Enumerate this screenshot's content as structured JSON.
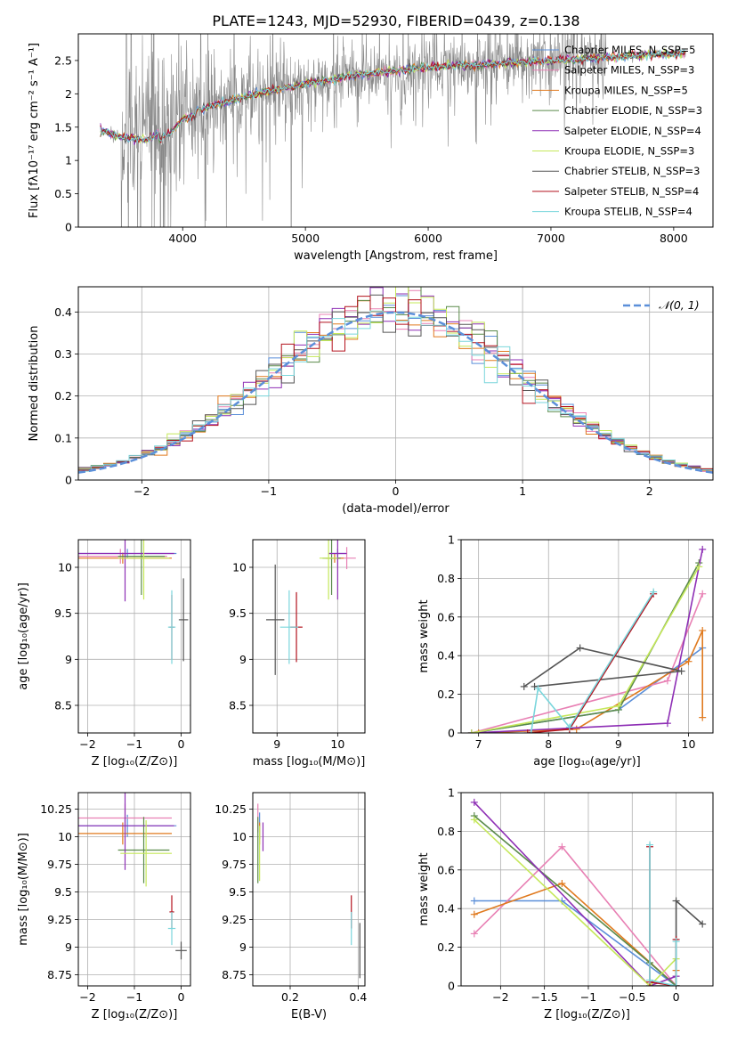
{
  "figure_title": "PLATE=1243, MJD=52930, FIBERID=0439, z=0.138",
  "colors": {
    "chabrier_miles": "#5b8fd9",
    "salpeter_miles": "#e880b4",
    "kroupa_miles": "#e07a1f",
    "chabrier_elodie": "#5a8a4a",
    "salpeter_elodie": "#8e2fb5",
    "kroupa_elodie": "#c5e85a",
    "chabrier_stelib": "#555555",
    "salpeter_stelib": "#b3121d",
    "kroupa_stelib": "#7ad6dc",
    "gauss": "#5b8fd9",
    "data": "#888888"
  },
  "chart_data": [
    {
      "id": "spectrum",
      "type": "line",
      "xlabel": "wavelength [Angstrom, rest frame]",
      "ylabel": "Flux [fλ10⁻¹⁷ erg cm⁻² s⁻¹ A⁻¹]",
      "xlim": [
        3150,
        8320
      ],
      "ylim": [
        0,
        2.9
      ],
      "xticks": [
        4000,
        5000,
        6000,
        7000,
        8000
      ],
      "yticks": [
        0.0,
        0.5,
        1.0,
        1.5,
        2.0,
        2.5
      ],
      "legend_position": "top-right",
      "continuum": {
        "x": [
          3350,
          3500,
          3700,
          3900,
          4000,
          4300,
          4600,
          5000,
          5500,
          6000,
          6500,
          7000,
          7500,
          8000,
          8100
        ],
        "y": [
          1.45,
          1.35,
          1.3,
          1.5,
          1.7,
          1.85,
          2.0,
          2.15,
          2.3,
          2.4,
          2.45,
          2.5,
          2.55,
          2.6,
          2.62
        ]
      },
      "data_noise_range": [
        3500,
        7450
      ],
      "series": [
        {
          "name": "Chabrier MILES, N_SSP=5",
          "color": "chabrier_miles"
        },
        {
          "name": "Salpeter MILES, N_SSP=3",
          "color": "salpeter_miles"
        },
        {
          "name": "Kroupa MILES, N_SSP=5",
          "color": "kroupa_miles"
        },
        {
          "name": "Chabrier ELODIE, N_SSP=3",
          "color": "chabrier_elodie"
        },
        {
          "name": "Salpeter ELODIE, N_SSP=4",
          "color": "salpeter_elodie"
        },
        {
          "name": "Kroupa ELODIE, N_SSP=3",
          "color": "kroupa_elodie"
        },
        {
          "name": "Chabrier STELIB, N_SSP=3",
          "color": "chabrier_stelib"
        },
        {
          "name": "Salpeter STELIB, N_SSP=4",
          "color": "salpeter_stelib"
        },
        {
          "name": "Kroupa STELIB, N_SSP=4",
          "color": "kroupa_stelib"
        }
      ]
    },
    {
      "id": "residuals",
      "type": "bar",
      "xlabel": "(data-model)/error",
      "ylabel": "Normed distribution",
      "xlim": [
        -2.5,
        2.5
      ],
      "ylim": [
        0,
        0.46
      ],
      "xticks": [
        -2,
        -1,
        0,
        1,
        2
      ],
      "yticks": [
        0.0,
        0.1,
        0.2,
        0.3,
        0.4
      ],
      "grid": true,
      "legend_position": "top-right",
      "gauss_label": "𝒩(0, 1)",
      "bin_width": 0.1
    },
    {
      "id": "age_vs_Z",
      "type": "scatter",
      "xlabel": "Z [log₁₀(Z/Z⊙)]",
      "ylabel": "age  [log₁₀(age/yr)]",
      "xlim": [
        -2.2,
        0.2
      ],
      "ylim": [
        8.2,
        10.3
      ],
      "xticks": [
        -2,
        -1,
        0
      ],
      "yticks": [
        8.5,
        9.0,
        9.5,
        10.0
      ],
      "grid": true,
      "points": [
        {
          "series": "chabrier_miles",
          "x": -1.15,
          "xerr": 1.05,
          "y": 10.15,
          "yerr": 0.05
        },
        {
          "series": "salpeter_miles",
          "x": -1.3,
          "xerr": 1.0,
          "y": 10.12,
          "yerr": 0.08
        },
        {
          "series": "kroupa_miles",
          "x": -1.25,
          "xerr": 1.05,
          "y": 10.1,
          "yerr": 0.06
        },
        {
          "series": "chabrier_elodie",
          "x": -0.85,
          "xerr": 0.5,
          "y": 10.12,
          "yerr": 0.42
        },
        {
          "series": "salpeter_elodie",
          "x": -1.2,
          "xerr": 1.05,
          "y": 10.15,
          "yerr": 0.52
        },
        {
          "series": "kroupa_elodie",
          "x": -0.8,
          "xerr": 0.55,
          "y": 10.1,
          "yerr": 0.45
        },
        {
          "series": "chabrier_stelib",
          "x": 0.05,
          "xerr": 0.1,
          "y": 9.43,
          "yerr": 0.45
        },
        {
          "series": "salpeter_stelib",
          "x": -0.2,
          "xerr": 0.05,
          "y": 9.35,
          "yerr": 0.35
        },
        {
          "series": "kroupa_stelib",
          "x": -0.2,
          "xerr": 0.08,
          "y": 9.35,
          "yerr": 0.4
        }
      ]
    },
    {
      "id": "age_vs_mass",
      "type": "scatter",
      "xlabel": "mass [log₁₀(M/M⊙)]",
      "ylabel": "",
      "xlim": [
        8.6,
        10.45
      ],
      "ylim": [
        8.2,
        10.3
      ],
      "xticks": [
        9,
        10
      ],
      "yticks": [
        8.5,
        9.0,
        9.5,
        10.0
      ],
      "grid": true,
      "points": [
        {
          "series": "chabrier_miles",
          "x": 10.0,
          "xerr": 0.15,
          "y": 10.15,
          "yerr": 0.05
        },
        {
          "series": "salpeter_miles",
          "x": 10.15,
          "xerr": 0.15,
          "y": 10.1,
          "yerr": 0.12
        },
        {
          "series": "kroupa_miles",
          "x": 9.95,
          "xerr": 0.15,
          "y": 10.1,
          "yerr": 0.05
        },
        {
          "series": "chabrier_elodie",
          "x": 9.9,
          "xerr": 0.15,
          "y": 10.1,
          "yerr": 0.4
        },
        {
          "series": "salpeter_elodie",
          "x": 10.0,
          "xerr": 0.15,
          "y": 10.15,
          "yerr": 0.5
        },
        {
          "series": "kroupa_elodie",
          "x": 9.85,
          "xerr": 0.15,
          "y": 10.1,
          "yerr": 0.45
        },
        {
          "series": "chabrier_stelib",
          "x": 8.97,
          "xerr": 0.15,
          "y": 9.43,
          "yerr": 0.6
        },
        {
          "series": "salpeter_stelib",
          "x": 9.32,
          "xerr": 0.1,
          "y": 9.35,
          "yerr": 0.38
        },
        {
          "series": "kroupa_stelib",
          "x": 9.2,
          "xerr": 0.15,
          "y": 9.35,
          "yerr": 0.4
        }
      ]
    },
    {
      "id": "weight_vs_age",
      "type": "line",
      "xlabel": "age  [log₁₀(age/yr)]",
      "ylabel": "mass weight",
      "xlim": [
        6.75,
        10.35
      ],
      "ylim": [
        0,
        1.0
      ],
      "xticks": [
        7,
        8,
        9,
        10
      ],
      "yticks": [
        0.0,
        0.2,
        0.4,
        0.6,
        0.8,
        1.0
      ],
      "grid": true,
      "series": [
        {
          "color": "chabrier_miles",
          "x": [
            6.9,
            9.0,
            10.2
          ],
          "y": [
            0.0,
            0.12,
            0.44
          ]
        },
        {
          "color": "salpeter_miles",
          "x": [
            6.9,
            9.7,
            10.2
          ],
          "y": [
            0.0,
            0.27,
            0.72
          ]
        },
        {
          "color": "kroupa_miles",
          "x": [
            7.0,
            8.4,
            10.0,
            10.2,
            10.2
          ],
          "y": [
            0.0,
            0.02,
            0.37,
            0.53,
            0.08
          ]
        },
        {
          "color": "chabrier_elodie",
          "x": [
            6.9,
            9.0,
            10.15
          ],
          "y": [
            0.0,
            0.12,
            0.88
          ]
        },
        {
          "color": "salpeter_elodie",
          "x": [
            6.9,
            9.7,
            10.2
          ],
          "y": [
            0.0,
            0.05,
            0.95
          ]
        },
        {
          "color": "kroupa_elodie",
          "x": [
            6.9,
            9.0,
            10.15
          ],
          "y": [
            0.0,
            0.14,
            0.86
          ]
        },
        {
          "color": "chabrier_stelib",
          "x": [
            7.65,
            8.45,
            9.9,
            7.8
          ],
          "y": [
            0.24,
            0.44,
            0.32,
            0.24
          ]
        },
        {
          "color": "salpeter_stelib",
          "x": [
            7.7,
            8.3,
            9.5
          ],
          "y": [
            0.0,
            0.02,
            0.72
          ]
        },
        {
          "color": "kroupa_stelib",
          "x": [
            7.75,
            7.85,
            8.3,
            9.5
          ],
          "y": [
            0.0,
            0.23,
            0.03,
            0.73
          ]
        }
      ]
    },
    {
      "id": "mass_vs_Z",
      "type": "scatter",
      "xlabel": "Z [log₁₀(Z/Z⊙)]",
      "ylabel": "mass [log₁₀(M/M⊙)]",
      "xlim": [
        -2.2,
        0.2
      ],
      "ylim": [
        8.65,
        10.4
      ],
      "xticks": [
        -2,
        -1,
        0
      ],
      "yticks": [
        8.75,
        9.0,
        9.25,
        9.5,
        9.75,
        10.0,
        10.25
      ],
      "grid": true,
      "points": [
        {
          "series": "chabrier_miles",
          "x": -1.15,
          "xerr": 1.05,
          "y": 10.1,
          "yerr": 0.1
        },
        {
          "series": "salpeter_miles",
          "x": -1.2,
          "xerr": 1.0,
          "y": 10.17,
          "yerr": 0.13
        },
        {
          "series": "kroupa_miles",
          "x": -1.25,
          "xerr": 1.05,
          "y": 10.03,
          "yerr": 0.1
        },
        {
          "series": "chabrier_elodie",
          "x": -0.8,
          "xerr": 0.55,
          "y": 9.88,
          "yerr": 0.3
        },
        {
          "series": "salpeter_elodie",
          "x": -1.2,
          "xerr": 1.05,
          "y": 10.1,
          "yerr": 0.4
        },
        {
          "series": "kroupa_elodie",
          "x": -0.75,
          "xerr": 0.55,
          "y": 9.85,
          "yerr": 0.3
        },
        {
          "series": "chabrier_stelib",
          "x": 0.0,
          "xerr": 0.12,
          "y": 8.97,
          "yerr": 0.08
        },
        {
          "series": "salpeter_stelib",
          "x": -0.2,
          "xerr": 0.05,
          "y": 9.32,
          "yerr": 0.15
        },
        {
          "series": "kroupa_stelib",
          "x": -0.2,
          "xerr": 0.08,
          "y": 9.17,
          "yerr": 0.15
        }
      ]
    },
    {
      "id": "mass_vs_ebv",
      "type": "scatter",
      "xlabel": "E(B-V)",
      "ylabel": "",
      "xlim": [
        0.09,
        0.42
      ],
      "ylim": [
        8.65,
        10.4
      ],
      "xticks": [
        0.2,
        0.4
      ],
      "yticks": [
        8.75,
        9.0,
        9.25,
        9.5,
        9.75,
        10.0,
        10.25
      ],
      "grid": true,
      "points": [
        {
          "series": "chabrier_miles",
          "x": 0.11,
          "xerr": 0.0,
          "y": 10.1,
          "yerr": 0.12
        },
        {
          "series": "salpeter_miles",
          "x": 0.105,
          "xerr": 0.0,
          "y": 10.17,
          "yerr": 0.13
        },
        {
          "series": "kroupa_miles",
          "x": 0.11,
          "xerr": 0.0,
          "y": 10.03,
          "yerr": 0.1
        },
        {
          "series": "chabrier_elodie",
          "x": 0.105,
          "xerr": 0.0,
          "y": 9.88,
          "yerr": 0.3
        },
        {
          "series": "salpeter_elodie",
          "x": 0.12,
          "xerr": 0.0,
          "y": 10.0,
          "yerr": 0.13
        },
        {
          "series": "kroupa_elodie",
          "x": 0.11,
          "xerr": 0.0,
          "y": 9.85,
          "yerr": 0.25
        },
        {
          "series": "chabrier_stelib",
          "x": 0.405,
          "xerr": 0.0,
          "y": 8.97,
          "yerr": 0.25
        },
        {
          "series": "salpeter_stelib",
          "x": 0.38,
          "xerr": 0.0,
          "y": 9.32,
          "yerr": 0.15
        },
        {
          "series": "kroupa_stelib",
          "x": 0.38,
          "xerr": 0.0,
          "y": 9.17,
          "yerr": 0.15
        }
      ]
    },
    {
      "id": "weight_vs_Z",
      "type": "line",
      "xlabel": "Z [log₁₀(Z/Z⊙)]",
      "ylabel": "mass weight",
      "xlim": [
        -2.45,
        0.42
      ],
      "ylim": [
        0,
        1.0
      ],
      "xticks": [
        -2.0,
        -1.5,
        -1.0,
        -0.5,
        0.0
      ],
      "yticks": [
        0.0,
        0.2,
        0.4,
        0.6,
        0.8,
        1.0
      ],
      "grid": true,
      "series": [
        {
          "color": "chabrier_miles",
          "x": [
            -2.3,
            -1.3,
            0.0,
            0.0
          ],
          "y": [
            0.44,
            0.44,
            0.0,
            0.0
          ]
        },
        {
          "color": "salpeter_miles",
          "x": [
            -2.3,
            -1.3,
            0.0
          ],
          "y": [
            0.27,
            0.72,
            0.0
          ]
        },
        {
          "color": "kroupa_miles",
          "x": [
            -2.3,
            -1.3,
            0.0,
            0.0
          ],
          "y": [
            0.37,
            0.53,
            0.0,
            0.08
          ]
        },
        {
          "color": "chabrier_elodie",
          "x": [
            -2.3,
            -0.3,
            0.0
          ],
          "y": [
            0.88,
            0.12,
            0.0
          ]
        },
        {
          "color": "salpeter_elodie",
          "x": [
            -2.3,
            -0.3,
            0.0
          ],
          "y": [
            0.95,
            0.0,
            0.05
          ]
        },
        {
          "color": "kroupa_elodie",
          "x": [
            -2.3,
            -0.3,
            0.0
          ],
          "y": [
            0.86,
            0.0,
            0.14
          ]
        },
        {
          "color": "chabrier_stelib",
          "x": [
            -0.3,
            0.0,
            0.0,
            0.3
          ],
          "y": [
            0.0,
            0.0,
            0.44,
            0.32
          ]
        },
        {
          "color": "salpeter_stelib",
          "x": [
            -0.3,
            -0.3,
            0.0,
            0.0
          ],
          "y": [
            0.72,
            0.02,
            0.0,
            0.24
          ]
        },
        {
          "color": "kroupa_stelib",
          "x": [
            -0.3,
            -0.3,
            0.0,
            0.0
          ],
          "y": [
            0.73,
            0.03,
            0.0,
            0.23
          ]
        }
      ]
    }
  ]
}
